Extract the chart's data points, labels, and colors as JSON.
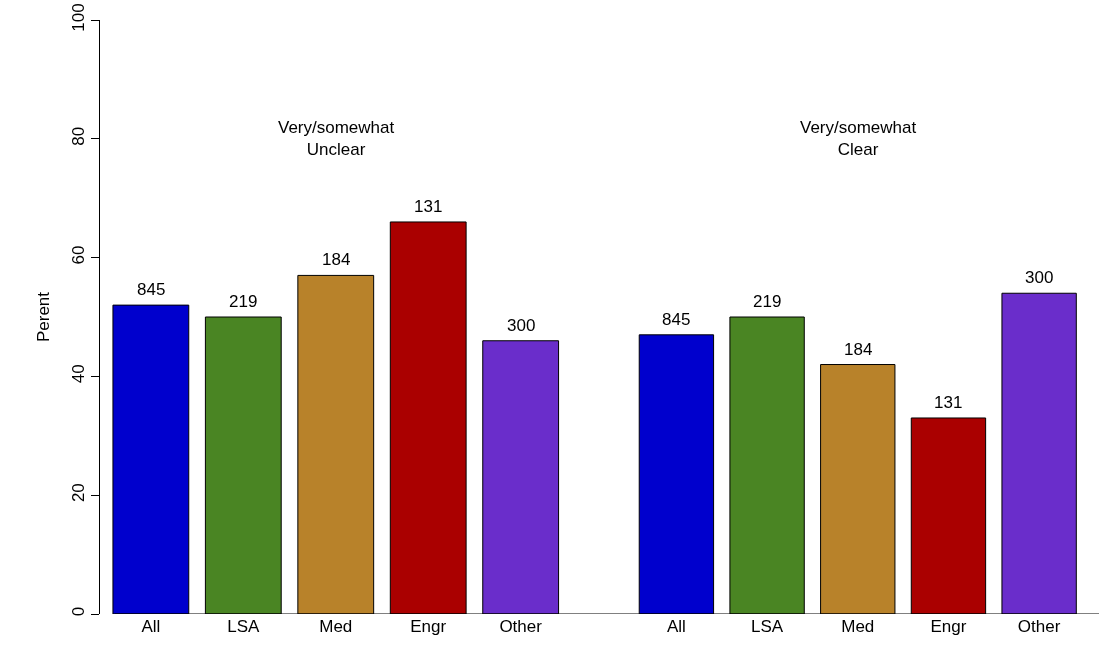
{
  "chart_data": [
    {
      "type": "bar",
      "title": "Very/somewhat\nUnclear",
      "ylabel": "Perent",
      "categories": [
        "All",
        "LSA",
        "Med",
        "Engr",
        "Other"
      ],
      "values": [
        52,
        50,
        57,
        66,
        46
      ],
      "colors": [
        "#0000cd",
        "#4a8523",
        "#b8822a",
        "#aa0000",
        "#6a2dcb"
      ],
      "annotations": [
        {
          "text": "845",
          "x": "All",
          "y": 52
        },
        {
          "text": "219",
          "x": "LSA",
          "y": 50
        },
        {
          "text": "184",
          "x": "Med",
          "y": 57
        },
        {
          "text": "131",
          "x": "Engr",
          "y": 66
        },
        {
          "text": "300",
          "x": "Other",
          "y": 46
        }
      ],
      "ylim": [
        0,
        100
      ],
      "yticks": [
        0,
        20,
        40,
        60,
        80,
        100
      ],
      "grid": false
    },
    {
      "type": "bar",
      "title": "Very/somewhat\nClear",
      "categories": [
        "All",
        "LSA",
        "Med",
        "Engr",
        "Other"
      ],
      "values": [
        47,
        50,
        42,
        33,
        54
      ],
      "colors": [
        "#0000cd",
        "#4a8523",
        "#b8822a",
        "#aa0000",
        "#6a2dcb"
      ],
      "annotations": [
        {
          "text": "845",
          "x": "All",
          "y": 47
        },
        {
          "text": "219",
          "x": "LSA",
          "y": 50
        },
        {
          "text": "184",
          "x": "Med",
          "y": 42
        },
        {
          "text": "131",
          "x": "Engr",
          "y": 33
        },
        {
          "text": "300",
          "x": "Other",
          "y": 54
        }
      ],
      "ylim": [
        0,
        100
      ],
      "yticks": [
        0,
        20,
        40,
        60,
        80,
        100
      ],
      "grid": false,
      "tick_labels": "x"
    }
  ]
}
